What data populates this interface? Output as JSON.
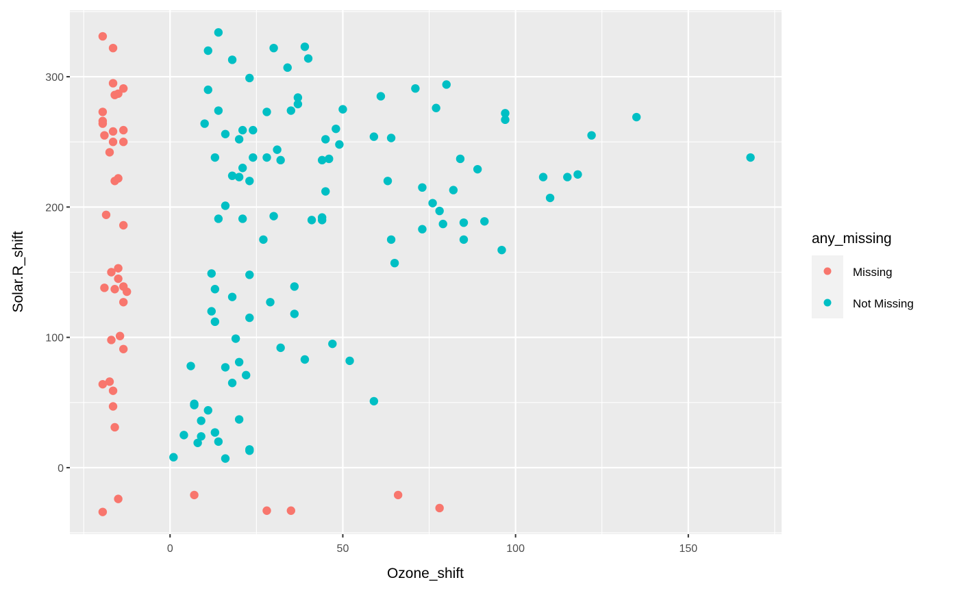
{
  "chart_data": {
    "type": "scatter",
    "title": "",
    "xlabel": "Ozone_shift",
    "ylabel": "Solar.R_shift",
    "xlim": [
      -29,
      177
    ],
    "ylim": [
      -51,
      351
    ],
    "x_ticks": [
      0,
      50,
      100,
      150
    ],
    "y_ticks": [
      0,
      100,
      200,
      300
    ],
    "x_minor": [
      -25,
      25,
      75,
      125,
      175
    ],
    "y_minor": [
      -50,
      50,
      150,
      250,
      350
    ],
    "grid": true,
    "legend": {
      "title": "any_missing",
      "position": "right"
    },
    "series": [
      {
        "name": "Missing",
        "color": "#F8766D",
        "points": [
          [
            -19.5,
            331
          ],
          [
            -16.5,
            322
          ],
          [
            -16.5,
            295
          ],
          [
            -13.5,
            291
          ],
          [
            -15,
            287
          ],
          [
            -16,
            286
          ],
          [
            -19.5,
            273
          ],
          [
            -19.5,
            266
          ],
          [
            -19.5,
            264
          ],
          [
            -16.5,
            258
          ],
          [
            -13.5,
            259
          ],
          [
            -19,
            255
          ],
          [
            -16.5,
            250
          ],
          [
            -13.5,
            250
          ],
          [
            -17.5,
            242
          ],
          [
            -15,
            222
          ],
          [
            -16,
            220
          ],
          [
            -18.5,
            194
          ],
          [
            -13.5,
            186
          ],
          [
            -15,
            153
          ],
          [
            -17,
            150
          ],
          [
            -15,
            145
          ],
          [
            -19,
            138
          ],
          [
            -16,
            137
          ],
          [
            -13.5,
            139
          ],
          [
            -12.5,
            135
          ],
          [
            -13.5,
            127
          ],
          [
            -14.5,
            101
          ],
          [
            -17,
            98
          ],
          [
            -13.5,
            91
          ],
          [
            -19.5,
            64
          ],
          [
            -17.5,
            66
          ],
          [
            -16.5,
            59
          ],
          [
            -16.5,
            47
          ],
          [
            -16,
            31
          ],
          [
            -15,
            -24
          ],
          [
            -19.5,
            -34
          ],
          [
            7,
            -21
          ],
          [
            28,
            -33
          ],
          [
            35,
            -33
          ],
          [
            66,
            -21
          ],
          [
            78,
            -31
          ]
        ]
      },
      {
        "name": "Not Missing",
        "color": "#00BFC4",
        "points": [
          [
            14,
            334
          ],
          [
            11,
            320
          ],
          [
            18,
            313
          ],
          [
            30,
            322
          ],
          [
            39,
            323
          ],
          [
            40,
            314
          ],
          [
            34,
            307
          ],
          [
            23,
            299
          ],
          [
            11,
            290
          ],
          [
            14,
            274
          ],
          [
            28,
            273
          ],
          [
            35,
            274
          ],
          [
            37,
            284
          ],
          [
            37,
            279
          ],
          [
            50,
            275
          ],
          [
            61,
            285
          ],
          [
            71,
            291
          ],
          [
            80,
            294
          ],
          [
            77,
            276
          ],
          [
            97,
            272
          ],
          [
            97,
            267
          ],
          [
            10,
            264
          ],
          [
            16,
            256
          ],
          [
            21,
            259
          ],
          [
            24,
            259
          ],
          [
            20,
            252
          ],
          [
            31,
            244
          ],
          [
            45,
            252
          ],
          [
            48,
            260
          ],
          [
            49,
            248
          ],
          [
            59,
            254
          ],
          [
            64,
            253
          ],
          [
            13,
            238
          ],
          [
            28,
            238
          ],
          [
            24,
            238
          ],
          [
            32,
            236
          ],
          [
            44,
            236
          ],
          [
            46,
            237
          ],
          [
            21,
            230
          ],
          [
            18,
            224
          ],
          [
            20,
            223
          ],
          [
            23,
            220
          ],
          [
            45,
            212
          ],
          [
            63,
            220
          ],
          [
            73,
            215
          ],
          [
            84,
            237
          ],
          [
            89,
            229
          ],
          [
            82,
            213
          ],
          [
            122,
            255
          ],
          [
            135,
            269
          ],
          [
            168,
            238
          ],
          [
            108,
            223
          ],
          [
            115,
            223
          ],
          [
            118,
            225
          ],
          [
            110,
            207
          ],
          [
            16,
            201
          ],
          [
            14,
            191
          ],
          [
            21,
            191
          ],
          [
            30,
            193
          ],
          [
            41,
            190
          ],
          [
            44,
            192
          ],
          [
            44,
            190
          ],
          [
            76,
            203
          ],
          [
            78,
            197
          ],
          [
            79,
            187
          ],
          [
            85,
            188
          ],
          [
            91,
            189
          ],
          [
            73,
            183
          ],
          [
            27,
            175
          ],
          [
            64,
            175
          ],
          [
            85,
            175
          ],
          [
            96,
            167
          ],
          [
            65,
            157
          ],
          [
            12,
            149
          ],
          [
            23,
            148
          ],
          [
            13,
            137
          ],
          [
            36,
            139
          ],
          [
            18,
            131
          ],
          [
            29,
            127
          ],
          [
            12,
            120
          ],
          [
            36,
            118
          ],
          [
            13,
            112
          ],
          [
            23,
            115
          ],
          [
            19,
            99
          ],
          [
            47,
            95
          ],
          [
            32,
            92
          ],
          [
            39,
            83
          ],
          [
            52,
            82
          ],
          [
            20,
            81
          ],
          [
            6,
            78
          ],
          [
            16,
            77
          ],
          [
            22,
            71
          ],
          [
            18,
            65
          ],
          [
            59,
            51
          ],
          [
            7,
            49
          ],
          [
            7,
            48
          ],
          [
            11,
            44
          ],
          [
            9,
            36
          ],
          [
            20,
            37
          ],
          [
            4,
            25
          ],
          [
            9,
            24
          ],
          [
            13,
            27
          ],
          [
            8,
            19
          ],
          [
            14,
            20
          ],
          [
            23,
            14
          ],
          [
            23,
            13
          ],
          [
            1,
            8
          ],
          [
            16,
            7
          ]
        ]
      }
    ]
  },
  "legend": {
    "title": "any_missing",
    "items": [
      {
        "label": "Missing",
        "color": "#F8766D"
      },
      {
        "label": "Not Missing",
        "color": "#00BFC4"
      }
    ]
  },
  "axes": {
    "x_title": "Ozone_shift",
    "y_title": "Solar.R_shift",
    "x_tick_labels": [
      "0",
      "50",
      "100",
      "150"
    ],
    "y_tick_labels": [
      "0",
      "100",
      "200",
      "300"
    ]
  }
}
